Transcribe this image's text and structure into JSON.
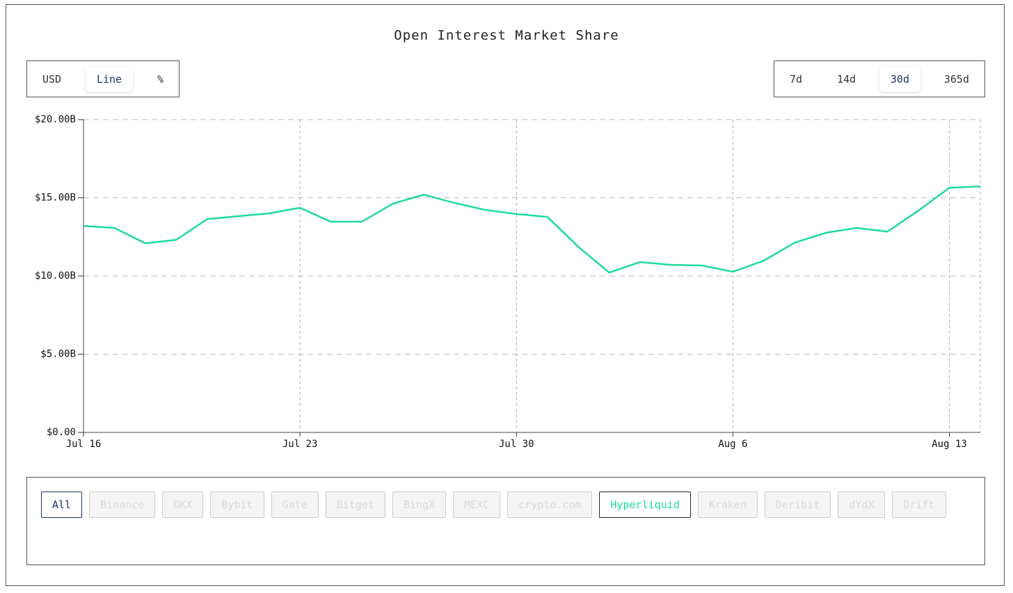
{
  "chart_data": {
    "type": "line",
    "title": "Open Interest Market Share",
    "categories": [
      "Jul 16",
      null,
      null,
      null,
      null,
      null,
      null,
      "Jul 23",
      null,
      null,
      null,
      null,
      null,
      null,
      "Jul 30",
      null,
      null,
      null,
      null,
      null,
      null,
      "Aug 6",
      null,
      null,
      null,
      null,
      null,
      null,
      "Aug 13",
      null
    ],
    "values": [
      13.2,
      13.07,
      12.09,
      12.31,
      13.64,
      13.82,
      14.0,
      14.36,
      13.47,
      13.47,
      14.62,
      15.2,
      14.67,
      14.22,
      13.96,
      13.78,
      11.87,
      10.22,
      10.89,
      10.71,
      10.67,
      10.27,
      10.98,
      12.13,
      12.76,
      13.07,
      12.84,
      14.18,
      15.64,
      15.73
    ],
    "color": "#1ddc9a",
    "ylim": [
      0,
      20
    ],
    "yticks": [
      {
        "value": 0,
        "label": "$0.00"
      },
      {
        "value": 5,
        "label": "$5.00B"
      },
      {
        "value": 10,
        "label": "$10.00B"
      },
      {
        "value": 15,
        "label": "$15.00B"
      },
      {
        "value": 20,
        "label": "$20.00B"
      }
    ],
    "grid": true
  },
  "controls": {
    "mode_buttons": [
      {
        "label": "USD",
        "selected": false
      },
      {
        "label": "Line",
        "selected": true
      },
      {
        "label": "%",
        "selected": false
      }
    ],
    "range_buttons": [
      {
        "label": "7d",
        "selected": false
      },
      {
        "label": "14d",
        "selected": false
      },
      {
        "label": "30d",
        "selected": true
      },
      {
        "label": "365d",
        "selected": false
      }
    ],
    "exchange_filters": [
      {
        "label": "All",
        "selected": true
      },
      {
        "label": "Binance",
        "selected": false
      },
      {
        "label": "OKX",
        "selected": false
      },
      {
        "label": "Bybit",
        "selected": false
      },
      {
        "label": "Gate",
        "selected": false
      },
      {
        "label": "Bitget",
        "selected": false
      },
      {
        "label": "BingX",
        "selected": false
      },
      {
        "label": "MEXC",
        "selected": false
      },
      {
        "label": "crypto.com",
        "selected": false
      },
      {
        "label": "Hyperliquid",
        "selected": true
      },
      {
        "label": "Kraken",
        "selected": false
      },
      {
        "label": "Deribit",
        "selected": false
      },
      {
        "label": "dYdX",
        "selected": false
      },
      {
        "label": "Drift",
        "selected": false
      }
    ]
  }
}
